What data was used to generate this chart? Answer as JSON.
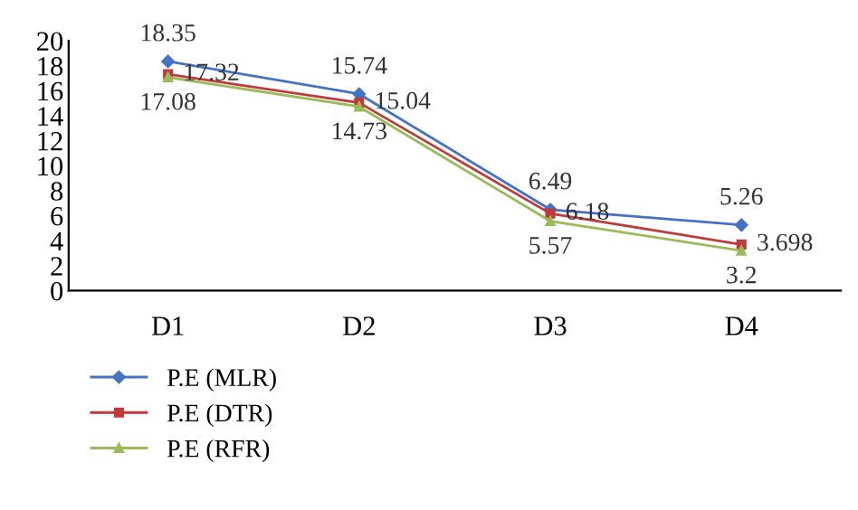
{
  "chart_data": {
    "type": "line",
    "categories": [
      "D1",
      "D2",
      "D3",
      "D4"
    ],
    "series": [
      {
        "name": "P.E (MLR)",
        "color": "#4472c4",
        "marker": "diamond",
        "values": [
          18.35,
          15.74,
          6.49,
          5.26
        ]
      },
      {
        "name": "P.E (DTR)",
        "color": "#c0393b",
        "marker": "square",
        "values": [
          17.32,
          15.04,
          6.18,
          3.698
        ]
      },
      {
        "name": "P.E (RFR)",
        "color": "#9bbb59",
        "marker": "triangle",
        "values": [
          17.08,
          14.73,
          5.57,
          3.2
        ]
      }
    ],
    "ylim": [
      0,
      20
    ],
    "yticks": [
      0,
      2,
      4,
      6,
      8,
      10,
      12,
      14,
      16,
      18,
      20
    ],
    "data_labels": true,
    "legend": "bottom left",
    "grid": false
  }
}
